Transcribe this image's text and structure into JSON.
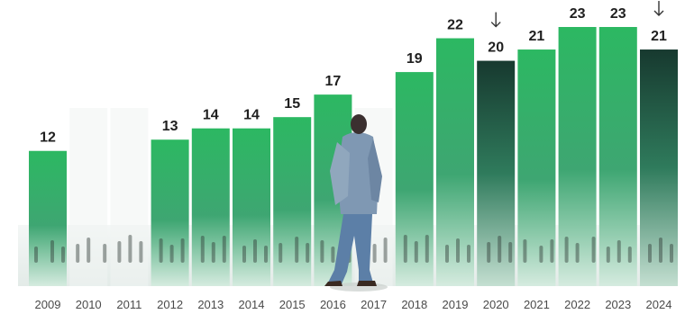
{
  "chart_data": {
    "type": "bar",
    "title": "",
    "xlabel": "",
    "ylabel": "",
    "categories": [
      "2009",
      "2010",
      "2011",
      "2012",
      "2013",
      "2014",
      "2015",
      "2016",
      "2017",
      "2018",
      "2019",
      "2020",
      "2021",
      "2022",
      "2023",
      "2024"
    ],
    "values": [
      12,
      null,
      null,
      13,
      14,
      14,
      15,
      17,
      null,
      19,
      22,
      20,
      21,
      23,
      23,
      21
    ],
    "value_labels": [
      "12",
      "",
      "",
      "13",
      "14",
      "14",
      "15",
      "17",
      "",
      "19",
      "22",
      "20",
      "21",
      "23",
      "23",
      "21"
    ],
    "down_arrow_years": [
      "2020",
      "2024"
    ],
    "ylim": [
      0,
      23
    ],
    "grid": false,
    "colors": {
      "bar_top": "#29b45e",
      "bar_bottom": "#cfe9da",
      "bar_dark_top": "#163f36",
      "bar_dark_bottom": "#b7d6c6",
      "ghost": "#f1f4f3",
      "floor": "#e9eeec"
    }
  }
}
